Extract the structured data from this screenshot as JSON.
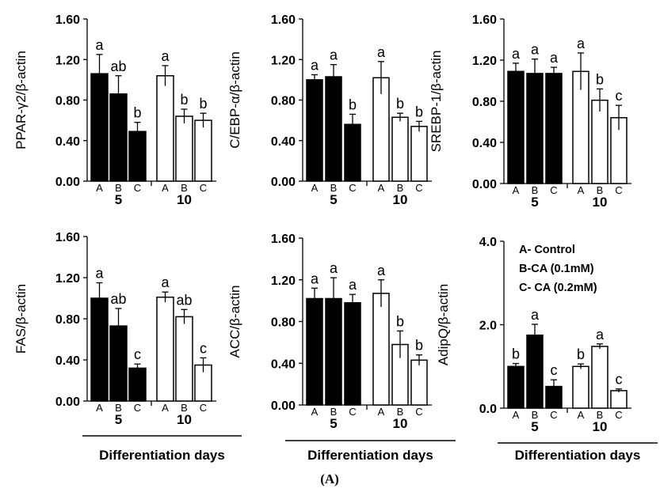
{
  "figure_label": "(A)",
  "legend": [
    "A- Control",
    "B-CA (0.1mM)",
    "C- CA (0.2mM)"
  ],
  "chart_data": [
    {
      "type": "bar",
      "ylabel": "PPAR-γ2/β-actin",
      "ylim": [
        0,
        1.6
      ],
      "yticks": [
        "0.00",
        "0.40",
        "0.80",
        "1.20",
        "1.60"
      ],
      "groups": [
        "5",
        "10"
      ],
      "categories": [
        "A",
        "B",
        "C"
      ],
      "values": [
        [
          1.06,
          0.86,
          0.49
        ],
        [
          1.04,
          0.64,
          0.6
        ]
      ],
      "errors": [
        [
          0.19,
          0.18,
          0.09
        ],
        [
          0.1,
          0.07,
          0.07
        ]
      ],
      "letters": [
        [
          "a",
          "ab",
          "b"
        ],
        [
          "a",
          "b",
          "b"
        ]
      ]
    },
    {
      "type": "bar",
      "ylabel": "C/EBP-α/β-actin",
      "ylim": [
        0,
        1.6
      ],
      "yticks": [
        "0.00",
        "0.40",
        "0.80",
        "1.20",
        "1.60"
      ],
      "groups": [
        "5",
        "10"
      ],
      "categories": [
        "A",
        "B",
        "C"
      ],
      "values": [
        [
          1.0,
          1.03,
          0.56
        ],
        [
          1.02,
          0.63,
          0.54
        ]
      ],
      "errors": [
        [
          0.05,
          0.12,
          0.1
        ],
        [
          0.16,
          0.04,
          0.05
        ]
      ],
      "letters": [
        [
          "a",
          "a",
          "b"
        ],
        [
          "a",
          "b",
          "b"
        ]
      ]
    },
    {
      "type": "bar",
      "ylabel": "SREBP-1/β-actin",
      "ylim": [
        0,
        1.6
      ],
      "yticks": [
        "0.00",
        "0.40",
        "0.80",
        "1.20",
        "1.60"
      ],
      "groups": [
        "5",
        "10"
      ],
      "categories": [
        "A",
        "B",
        "C"
      ],
      "values": [
        [
          1.09,
          1.07,
          1.07
        ],
        [
          1.09,
          0.81,
          0.64
        ]
      ],
      "errors": [
        [
          0.08,
          0.14,
          0.06
        ],
        [
          0.18,
          0.11,
          0.12
        ]
      ],
      "letters": [
        [
          "a",
          "a",
          "a"
        ],
        [
          "a",
          "b",
          "c"
        ]
      ]
    },
    {
      "type": "bar",
      "ylabel": "FAS/β-actin",
      "ylim": [
        0,
        1.6
      ],
      "yticks": [
        "0.00",
        "0.40",
        "0.80",
        "1.20",
        "1.60"
      ],
      "groups": [
        "5",
        "10"
      ],
      "categories": [
        "A",
        "B",
        "C"
      ],
      "values": [
        [
          1.0,
          0.73,
          0.32
        ],
        [
          1.01,
          0.82,
          0.35
        ]
      ],
      "errors": [
        [
          0.15,
          0.17,
          0.04
        ],
        [
          0.05,
          0.07,
          0.07
        ]
      ],
      "letters": [
        [
          "a",
          "ab",
          "c"
        ],
        [
          "a",
          "ab",
          "c"
        ]
      ],
      "xtitle": "Differentiation days"
    },
    {
      "type": "bar",
      "ylabel": "ACC/β-actin",
      "ylim": [
        0,
        1.6
      ],
      "yticks": [
        "0.00",
        "0.40",
        "0.80",
        "1.20",
        "1.60"
      ],
      "groups": [
        "5",
        "10"
      ],
      "categories": [
        "A",
        "B",
        "C"
      ],
      "values": [
        [
          1.02,
          1.02,
          0.98
        ],
        [
          1.07,
          0.58,
          0.43
        ]
      ],
      "errors": [
        [
          0.1,
          0.2,
          0.08
        ],
        [
          0.13,
          0.13,
          0.05
        ]
      ],
      "letters": [
        [
          "a",
          "a",
          "a"
        ],
        [
          "a",
          "b",
          "b"
        ]
      ],
      "xtitle": "Differentiation days"
    },
    {
      "type": "bar",
      "ylabel": "AdipQ/β-actin",
      "ylim": [
        0,
        4.0
      ],
      "yticks": [
        "0.0",
        "2.0",
        "4.0"
      ],
      "groups": [
        "5",
        "10"
      ],
      "categories": [
        "A",
        "B",
        "C"
      ],
      "values": [
        [
          1.0,
          1.75,
          0.52
        ],
        [
          1.0,
          1.48,
          0.42
        ]
      ],
      "errors": [
        [
          0.07,
          0.26,
          0.16
        ],
        [
          0.06,
          0.06,
          0.04
        ]
      ],
      "letters": [
        [
          "b",
          "a",
          "c"
        ],
        [
          "b",
          "a",
          "c"
        ]
      ],
      "xtitle": "Differentiation days"
    }
  ]
}
